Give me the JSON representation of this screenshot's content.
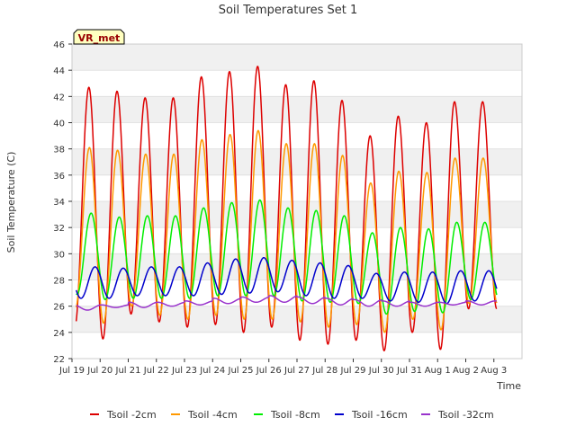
{
  "chart_data": {
    "type": "line",
    "title": "Soil Temperatures Set 1",
    "xlabel": "Time",
    "ylabel": "Soil Temperature (C)",
    "ylim": [
      22,
      46
    ],
    "y_ticks": [
      22,
      24,
      26,
      28,
      30,
      32,
      34,
      36,
      38,
      40,
      42,
      44,
      46
    ],
    "xlim_days": [
      0,
      16
    ],
    "x_ticks": [
      "Jul 19",
      "Jul 20",
      "Jul 21",
      "Jul 22",
      "Jul 23",
      "Jul 24",
      "Jul 25",
      "Jul 26",
      "Jul 27",
      "Jul 28",
      "Jul 29",
      "Jul 30",
      "Jul 31",
      "Aug 1",
      "Aug 2",
      "Aug 3"
    ],
    "grid": "horizontal bands",
    "legend_placement": "bottom",
    "annotation": "VR_met",
    "days": [
      "Jul 19",
      "Jul 20",
      "Jul 21",
      "Jul 22",
      "Jul 23",
      "Jul 24",
      "Jul 25",
      "Jul 26",
      "Jul 27",
      "Jul 28",
      "Jul 29",
      "Jul 30",
      "Jul 31",
      "Aug 1",
      "Aug 2"
    ],
    "series": [
      {
        "name": "Tsoil -2cm",
        "color": "#dd0000",
        "phase_of_max": 0.6,
        "daily_min": [
          24.4,
          23.5,
          25.4,
          24.8,
          24.4,
          24.6,
          24.0,
          24.4,
          23.4,
          23.1,
          23.4,
          22.6,
          24.0,
          22.7,
          25.8
        ],
        "daily_max": [
          42.7,
          42.4,
          41.9,
          41.9,
          43.5,
          43.9,
          44.3,
          42.9,
          43.2,
          41.7,
          39.0,
          40.5,
          40.0,
          41.6,
          41.6
        ]
      },
      {
        "name": "Tsoil -4cm",
        "color": "#ff9900",
        "phase_of_max": 0.62,
        "daily_min": [
          25.8,
          24.7,
          26.0,
          25.3,
          25.0,
          25.3,
          25.0,
          25.0,
          24.8,
          24.4,
          24.6,
          24.0,
          25.0,
          24.2,
          26.2
        ],
        "daily_max": [
          38.1,
          37.9,
          37.6,
          37.6,
          38.7,
          39.1,
          39.4,
          38.4,
          38.4,
          37.5,
          35.4,
          36.3,
          36.2,
          37.3,
          37.3
        ]
      },
      {
        "name": "Tsoil -8cm",
        "color": "#00ee00",
        "phase_of_max": 0.68,
        "daily_min": [
          26.9,
          26.5,
          26.6,
          26.6,
          26.6,
          26.8,
          26.8,
          26.8,
          26.4,
          26.3,
          26.2,
          25.4,
          25.6,
          25.5,
          26.5
        ],
        "daily_max": [
          33.1,
          32.8,
          32.9,
          32.9,
          33.5,
          33.9,
          34.1,
          33.5,
          33.3,
          32.9,
          31.6,
          32.0,
          31.9,
          32.4,
          32.4
        ]
      },
      {
        "name": "Tsoil -16cm",
        "color": "#0000cc",
        "phase_of_max": 0.82,
        "daily_min": [
          26.6,
          26.6,
          26.8,
          26.8,
          26.8,
          26.9,
          27.0,
          27.1,
          26.8,
          26.6,
          26.6,
          26.4,
          26.3,
          26.2,
          26.4
        ],
        "daily_max": [
          29.0,
          28.9,
          29.0,
          29.0,
          29.3,
          29.6,
          29.7,
          29.5,
          29.3,
          29.1,
          28.5,
          28.6,
          28.6,
          28.7,
          28.7
        ]
      },
      {
        "name": "Tsoil -32cm",
        "color": "#9933cc",
        "phase_of_max": 0.05,
        "daily_min": [
          25.8,
          25.7,
          25.9,
          25.9,
          26.0,
          26.1,
          26.2,
          26.3,
          26.3,
          26.2,
          26.1,
          26.0,
          26.0,
          26.0,
          26.1
        ],
        "daily_max": [
          26.1,
          26.1,
          26.3,
          26.3,
          26.4,
          26.6,
          26.7,
          26.8,
          26.7,
          26.6,
          26.5,
          26.4,
          26.3,
          26.3,
          26.4
        ]
      }
    ]
  }
}
